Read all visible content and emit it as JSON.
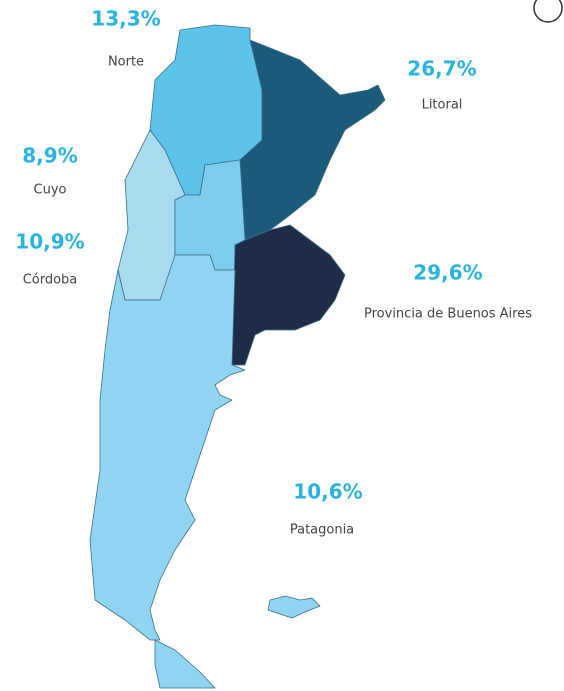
{
  "map": {
    "regions": [
      {
        "name": "Norte",
        "label": "13,3%",
        "color": "#5cc3ea"
      },
      {
        "name": "Litoral",
        "label": "26,7%",
        "color": "#1b5a78"
      },
      {
        "name": "Cuyo",
        "label": "8,9%",
        "color": "#a8daf0"
      },
      {
        "name": "Córdoba",
        "label": "10,9%",
        "color": "#7ecdee"
      },
      {
        "name": "Provincia de Buenos Aires",
        "label": "29,6%",
        "color": "#1f2c48"
      },
      {
        "name": "Patagonia",
        "label": "10,6%",
        "color": "#8fd4f1"
      }
    ]
  }
}
